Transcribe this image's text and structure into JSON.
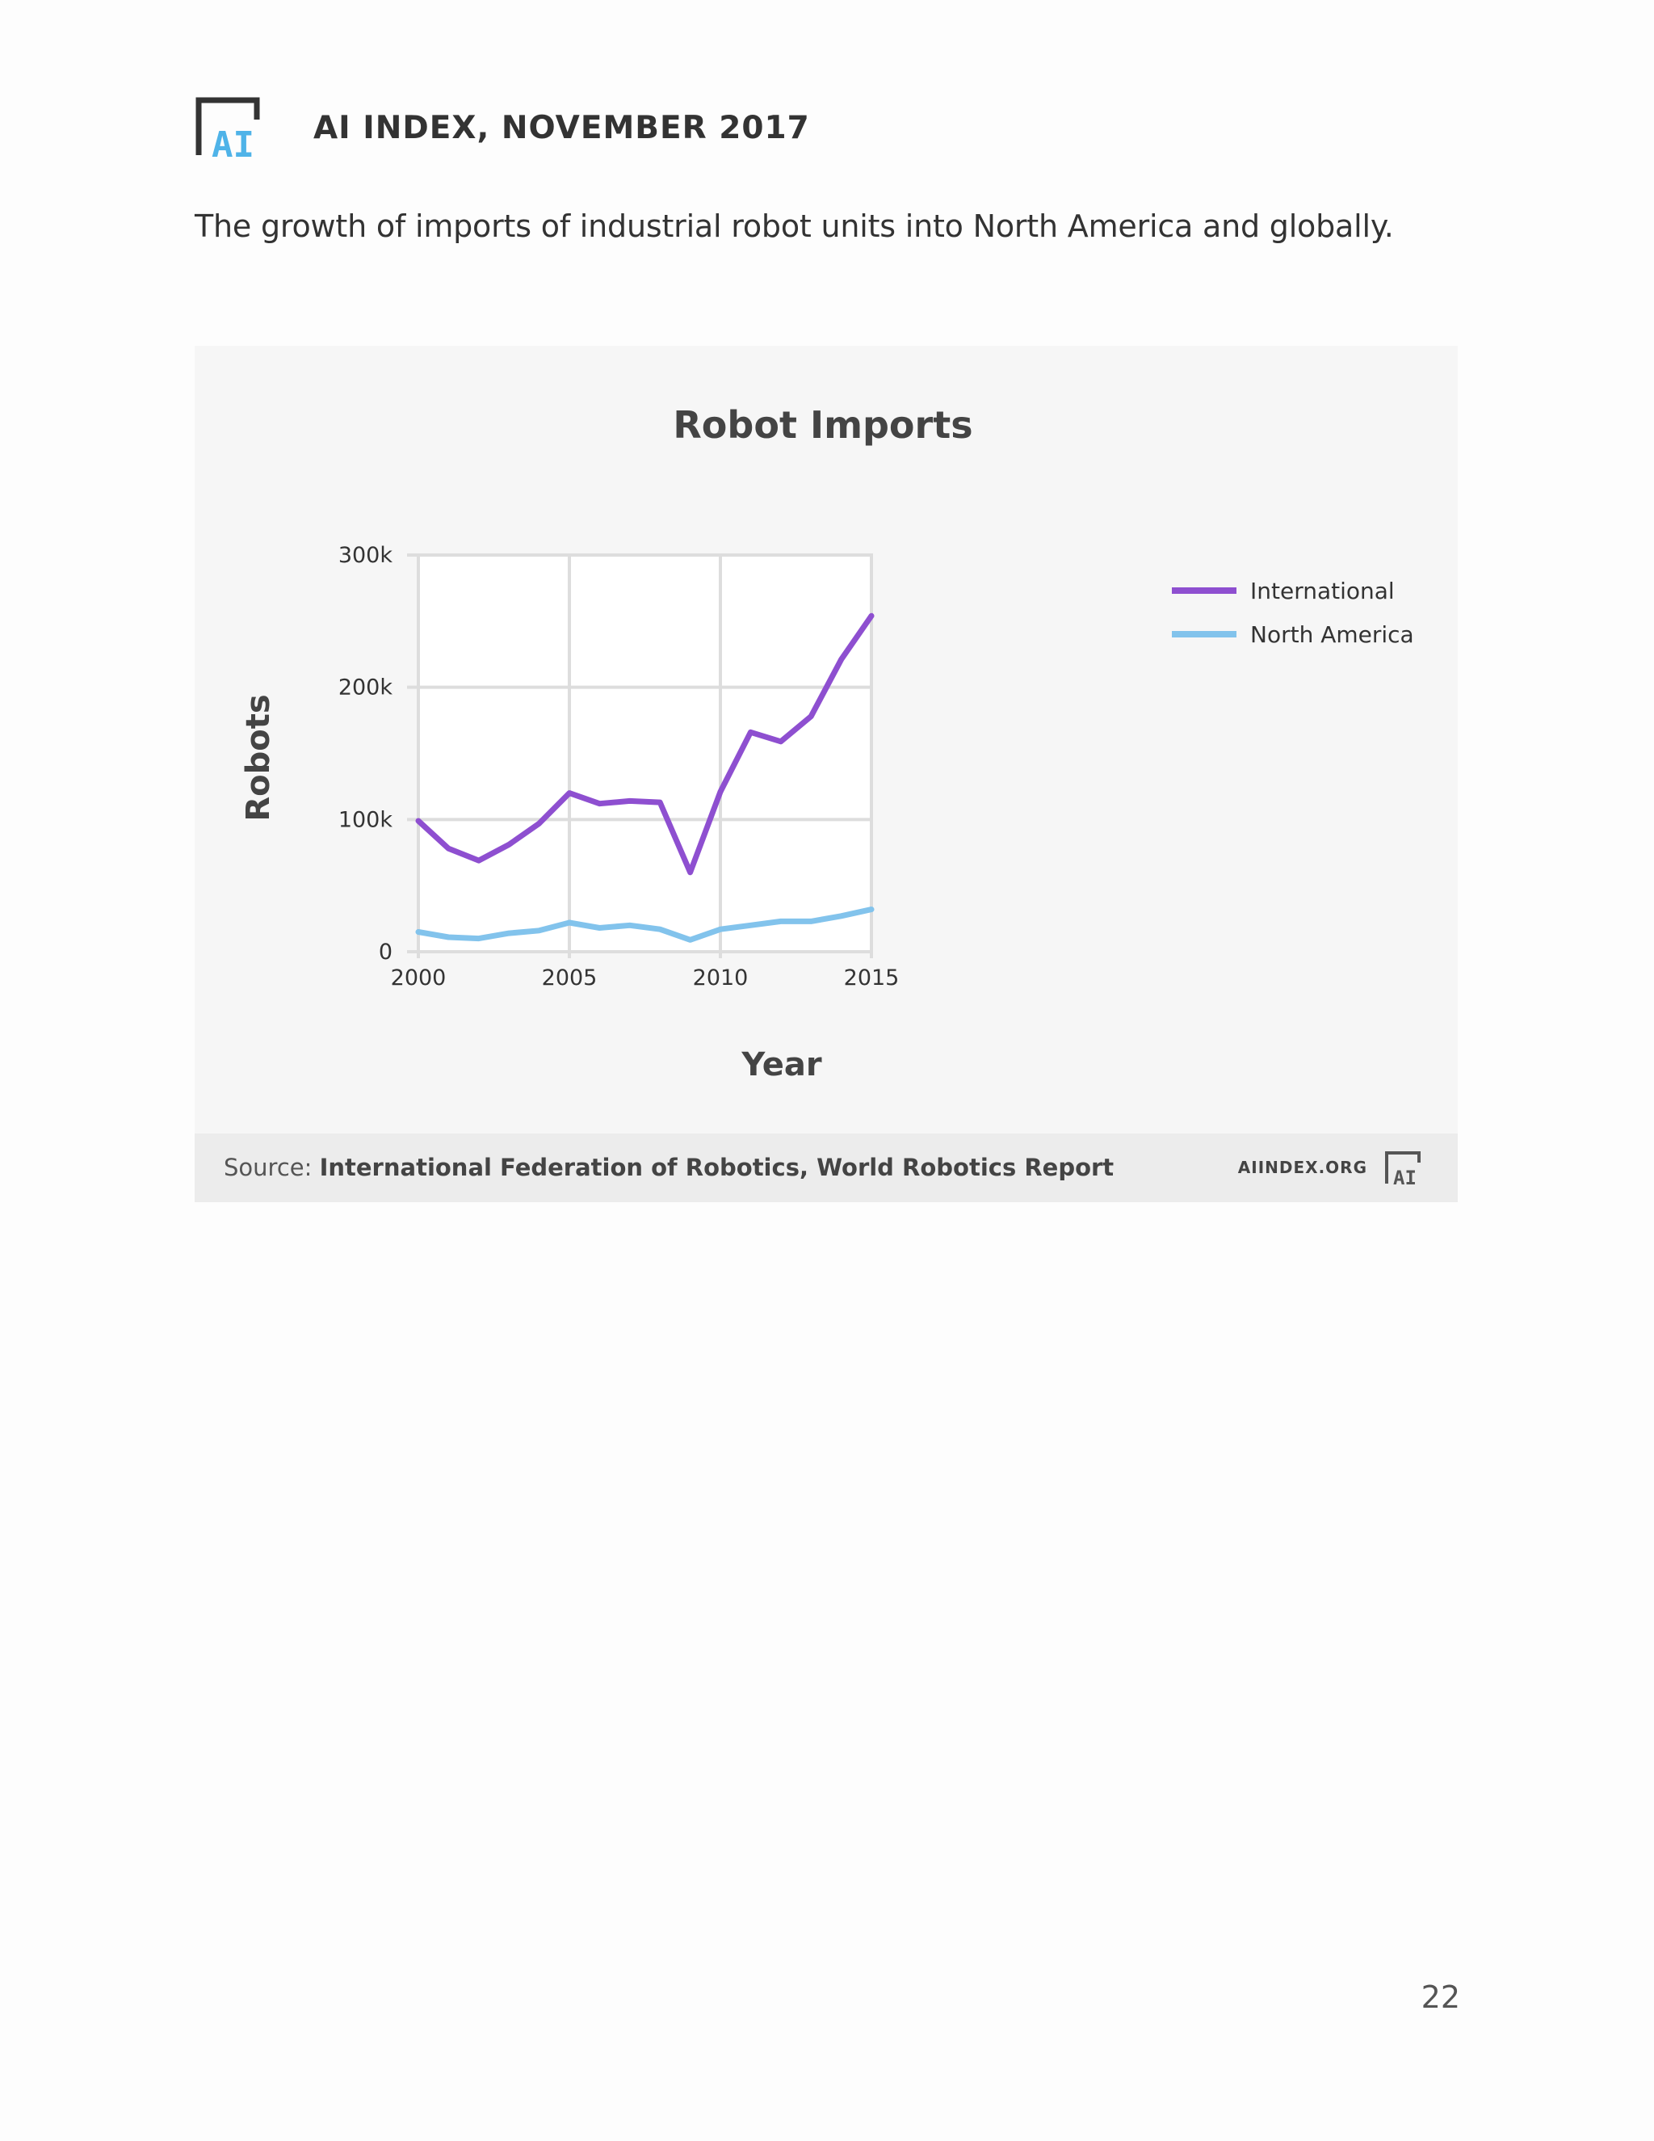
{
  "header": {
    "title": "AI INDEX, NOVEMBER 2017",
    "logo_icon": "ai-index-logo-icon",
    "logo_text": "AI"
  },
  "caption": "The growth of imports of industrial robot units into North America and globally.",
  "colors": {
    "international": "#8e4fd0",
    "north_america": "#82c3ec",
    "grid": "#dddddd",
    "logo_accent": "#4fb3e8"
  },
  "chart_data": {
    "type": "line",
    "title": "Robot Imports",
    "xlabel": "Year",
    "ylabel": "Robots",
    "x": [
      2000,
      2001,
      2002,
      2003,
      2004,
      2005,
      2006,
      2007,
      2008,
      2009,
      2010,
      2011,
      2012,
      2013,
      2014,
      2015
    ],
    "xlim": [
      2000,
      2015
    ],
    "ylim": [
      0,
      300000
    ],
    "x_ticks": [
      2000,
      2005,
      2010,
      2015
    ],
    "x_tick_labels": [
      "2000",
      "2005",
      "2010",
      "2015"
    ],
    "y_ticks": [
      0,
      100000,
      200000,
      300000
    ],
    "y_tick_labels": [
      "0",
      "100k",
      "200k",
      "300k"
    ],
    "grid": true,
    "legend_position": "right",
    "series": [
      {
        "name": "International",
        "color": "#8e4fd0",
        "values": [
          99000,
          78000,
          69000,
          81000,
          97000,
          120000,
          112000,
          114000,
          113000,
          60000,
          121000,
          166000,
          159000,
          178000,
          221000,
          254000
        ]
      },
      {
        "name": "North America",
        "color": "#82c3ec",
        "values": [
          15000,
          11000,
          10000,
          14000,
          16000,
          22000,
          18000,
          20000,
          17000,
          9000,
          17000,
          20000,
          23000,
          23000,
          27000,
          32000
        ]
      }
    ]
  },
  "source": {
    "prefix": "Source: ",
    "text": "International Federation of Robotics, World Robotics Report",
    "site": "AIINDEX.ORG"
  },
  "page_number": "22"
}
